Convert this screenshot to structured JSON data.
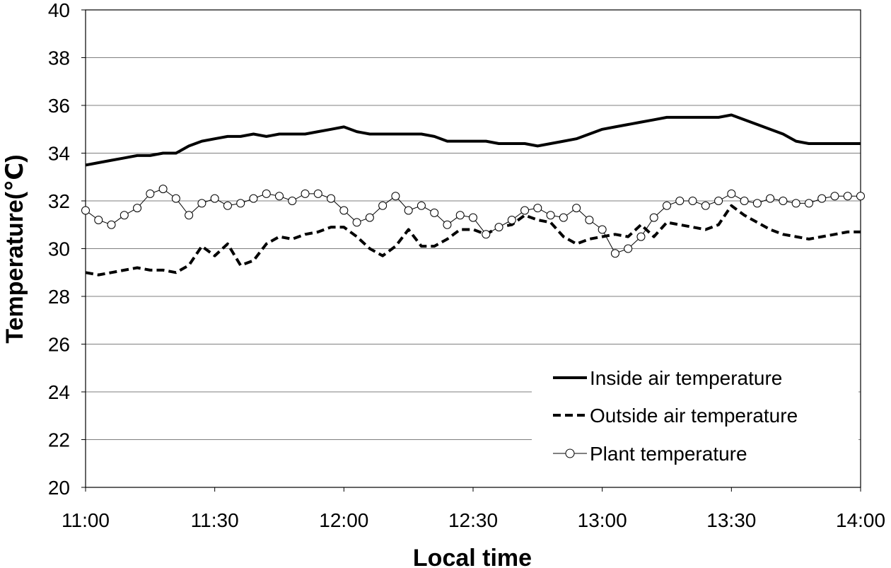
{
  "chart_data": {
    "type": "line",
    "title": "",
    "xlabel": "Local time",
    "ylabel": "Temperature(℃)",
    "ylim": [
      20,
      40
    ],
    "xlim_minutes": [
      0,
      180
    ],
    "x_ticks": [
      {
        "minute": 0,
        "label": "11:00"
      },
      {
        "minute": 30,
        "label": "11:30"
      },
      {
        "minute": 60,
        "label": "12:00"
      },
      {
        "minute": 90,
        "label": "12:30"
      },
      {
        "minute": 120,
        "label": "13:00"
      },
      {
        "minute": 150,
        "label": "13:30"
      },
      {
        "minute": 180,
        "label": "14:00"
      }
    ],
    "y_ticks": [
      20,
      22,
      24,
      26,
      28,
      30,
      32,
      34,
      36,
      38,
      40
    ],
    "grid": "horizontal",
    "legend_position": "bottom-right",
    "series": [
      {
        "name": "Inside air temperature",
        "style": "solid",
        "color": "#000000",
        "x": [
          0,
          3,
          6,
          9,
          12,
          15,
          18,
          21,
          24,
          27,
          30,
          33,
          36,
          39,
          42,
          45,
          48,
          51,
          54,
          57,
          60,
          63,
          66,
          69,
          72,
          75,
          78,
          81,
          84,
          87,
          90,
          93,
          96,
          99,
          102,
          105,
          108,
          111,
          114,
          117,
          120,
          123,
          126,
          129,
          132,
          135,
          138,
          141,
          144,
          147,
          150,
          153,
          156,
          159,
          162,
          165,
          168,
          171,
          174,
          177,
          180
        ],
        "values": [
          33.5,
          33.6,
          33.7,
          33.8,
          33.9,
          33.9,
          34.0,
          34.0,
          34.3,
          34.5,
          34.6,
          34.7,
          34.7,
          34.8,
          34.7,
          34.8,
          34.8,
          34.8,
          34.9,
          35.0,
          35.1,
          34.9,
          34.8,
          34.8,
          34.8,
          34.8,
          34.8,
          34.7,
          34.5,
          34.5,
          34.5,
          34.5,
          34.4,
          34.4,
          34.4,
          34.3,
          34.4,
          34.5,
          34.6,
          34.8,
          35.0,
          35.1,
          35.2,
          35.3,
          35.4,
          35.5,
          35.5,
          35.5,
          35.5,
          35.5,
          35.6,
          35.4,
          35.2,
          35.0,
          34.8,
          34.5,
          34.4,
          34.4,
          34.4,
          34.4,
          34.4
        ]
      },
      {
        "name": "Outside air temperature",
        "style": "dashed",
        "color": "#000000",
        "x": [
          0,
          3,
          6,
          9,
          12,
          15,
          18,
          21,
          24,
          27,
          30,
          33,
          36,
          39,
          42,
          45,
          48,
          51,
          54,
          57,
          60,
          63,
          66,
          69,
          72,
          75,
          78,
          81,
          84,
          87,
          90,
          93,
          96,
          99,
          102,
          105,
          108,
          111,
          114,
          117,
          120,
          123,
          126,
          129,
          132,
          135,
          138,
          141,
          144,
          147,
          150,
          153,
          156,
          159,
          162,
          165,
          168,
          171,
          174,
          177,
          180
        ],
        "values": [
          29.0,
          28.9,
          29.0,
          29.1,
          29.2,
          29.1,
          29.1,
          29.0,
          29.3,
          30.1,
          29.7,
          30.2,
          29.3,
          29.5,
          30.2,
          30.5,
          30.4,
          30.6,
          30.7,
          30.9,
          30.9,
          30.5,
          30.0,
          29.7,
          30.1,
          30.8,
          30.1,
          30.1,
          30.4,
          30.8,
          30.8,
          30.6,
          30.9,
          31.0,
          31.4,
          31.2,
          31.1,
          30.5,
          30.2,
          30.4,
          30.5,
          30.6,
          30.5,
          31.0,
          30.5,
          31.1,
          31.0,
          30.9,
          30.8,
          31.0,
          31.8,
          31.4,
          31.1,
          30.8,
          30.6,
          30.5,
          30.4,
          30.5,
          30.6,
          30.7,
          30.7
        ]
      },
      {
        "name": "Plant temperature",
        "style": "line-circle-markers",
        "color": "#000000",
        "x": [
          0,
          3,
          6,
          9,
          12,
          15,
          18,
          21,
          24,
          27,
          30,
          33,
          36,
          39,
          42,
          45,
          48,
          51,
          54,
          57,
          60,
          63,
          66,
          69,
          72,
          75,
          78,
          81,
          84,
          87,
          90,
          93,
          96,
          99,
          102,
          105,
          108,
          111,
          114,
          117,
          120,
          123,
          126,
          129,
          132,
          135,
          138,
          141,
          144,
          147,
          150,
          153,
          156,
          159,
          162,
          165,
          168,
          171,
          174,
          177,
          180
        ],
        "values": [
          31.6,
          31.2,
          31.0,
          31.4,
          31.7,
          32.3,
          32.5,
          32.1,
          31.4,
          31.9,
          32.1,
          31.8,
          31.9,
          32.1,
          32.3,
          32.2,
          32.0,
          32.3,
          32.3,
          32.1,
          31.6,
          31.1,
          31.3,
          31.8,
          32.2,
          31.6,
          31.8,
          31.5,
          31.0,
          31.4,
          31.3,
          30.6,
          30.9,
          31.2,
          31.6,
          31.7,
          31.4,
          31.3,
          31.7,
          31.2,
          30.8,
          29.8,
          30.0,
          30.5,
          31.3,
          31.8,
          32.0,
          32.0,
          31.8,
          32.0,
          32.3,
          32.0,
          31.9,
          32.1,
          32.0,
          31.9,
          31.9,
          32.1,
          32.2,
          32.2,
          32.2
        ]
      }
    ]
  }
}
